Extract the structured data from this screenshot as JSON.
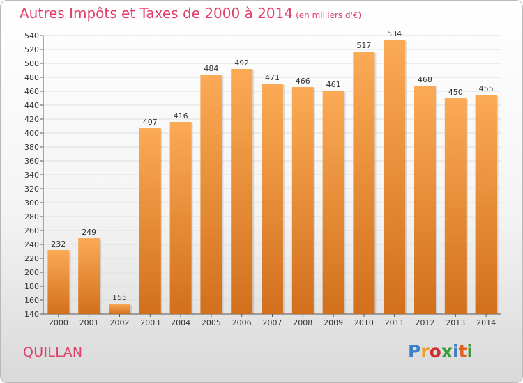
{
  "title": "Autres Impôts et Taxes de 2000 à 2014",
  "unit_note": "(en milliers d'€)",
  "commune": "QUILLAN",
  "logo": [
    "P",
    "r",
    "o",
    "x",
    "i",
    "t",
    "i"
  ],
  "logo_colors": [
    "#3f7fc8",
    "#f0a020",
    "#d03030",
    "#3a9a3a",
    "#3f7fc8",
    "#e06020",
    "#3a9a3a"
  ],
  "colors": {
    "bar_light": "#fbaa55",
    "bar_dark": "#d2701c",
    "title": "#e0406a",
    "grid": "#dedede"
  },
  "chart_data": {
    "type": "bar",
    "categories": [
      "2000",
      "2001",
      "2002",
      "2003",
      "2004",
      "2005",
      "2006",
      "2007",
      "2008",
      "2009",
      "2010",
      "2011",
      "2012",
      "2013",
      "2014"
    ],
    "values": [
      232,
      249,
      155,
      407,
      416,
      484,
      492,
      471,
      466,
      461,
      517,
      534,
      468,
      450,
      455
    ],
    "ylim": [
      140,
      540
    ],
    "yticks": [
      140,
      160,
      180,
      200,
      220,
      240,
      260,
      280,
      300,
      320,
      340,
      360,
      380,
      400,
      420,
      440,
      460,
      480,
      500,
      520,
      540
    ],
    "grid": true,
    "title": "Autres Impôts et Taxes de 2000 à 2014",
    "xlabel": "",
    "ylabel": ""
  }
}
